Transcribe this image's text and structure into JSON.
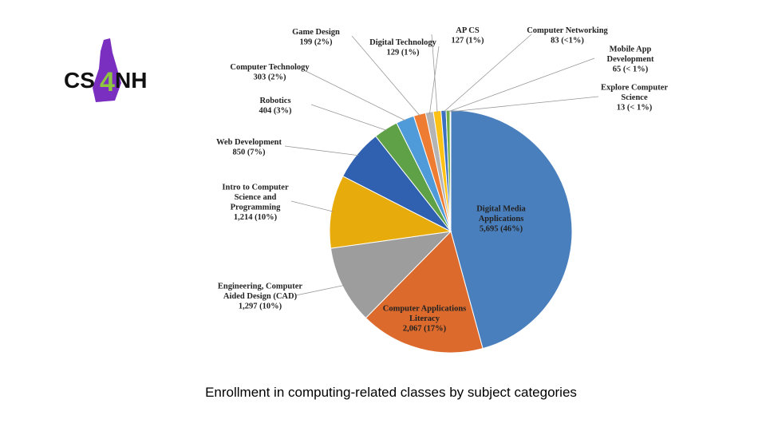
{
  "logo": {
    "left": "CS",
    "mid": "4",
    "right": "NH"
  },
  "caption": "Enrollment in computing-related classes by subject categories",
  "chart_data": {
    "type": "pie",
    "title": "",
    "slices": [
      {
        "label": [
          "Digital Media",
          "Applications"
        ],
        "value": 5695,
        "text": "5,695 (46%)",
        "color": "#4a7fbd"
      },
      {
        "label": [
          "Computer Applications",
          "Literacy"
        ],
        "value": 2067,
        "text": "2,067 (17%)",
        "color": "#db6a2c"
      },
      {
        "label": [
          "Engineering, Computer",
          "Aided Design (CAD)"
        ],
        "value": 1297,
        "text": "1,297 (10%)",
        "color": "#9d9d9d"
      },
      {
        "label": [
          "Intro to Computer",
          "Science and",
          "Programming"
        ],
        "value": 1214,
        "text": "1,214 (10%)",
        "color": "#e8ab0c"
      },
      {
        "label": [
          "Web Development"
        ],
        "value": 850,
        "text": "850 (7%)",
        "color": "#3060b0"
      },
      {
        "label": [
          "Robotics"
        ],
        "value": 404,
        "text": "404 (3%)",
        "color": "#5ea146"
      },
      {
        "label": [
          "Computer Technology"
        ],
        "value": 303,
        "text": "303 (2%)",
        "color": "#4f9ad8"
      },
      {
        "label": [
          "Game Design"
        ],
        "value": 199,
        "text": "199 (2%)",
        "color": "#ee7c33"
      },
      {
        "label": [
          "Digital Technology"
        ],
        "value": 129,
        "text": "129 (1%)",
        "color": "#b4b4b4"
      },
      {
        "label": [
          "AP CS"
        ],
        "value": 127,
        "text": "127 (1%)",
        "color": "#ffc114"
      },
      {
        "label": [
          "Computer Networking"
        ],
        "value": 83,
        "text": "83 (<1%)",
        "color": "#3a6fc2"
      },
      {
        "label": [
          "Mobile App",
          "Development"
        ],
        "value": 65,
        "text": "65 (< 1%)",
        "color": "#70ad47"
      },
      {
        "label": [
          "Explore Computer",
          "Science"
        ],
        "value": 13,
        "text": "13 (< 1%)",
        "color": "#2a5a9a"
      }
    ]
  }
}
